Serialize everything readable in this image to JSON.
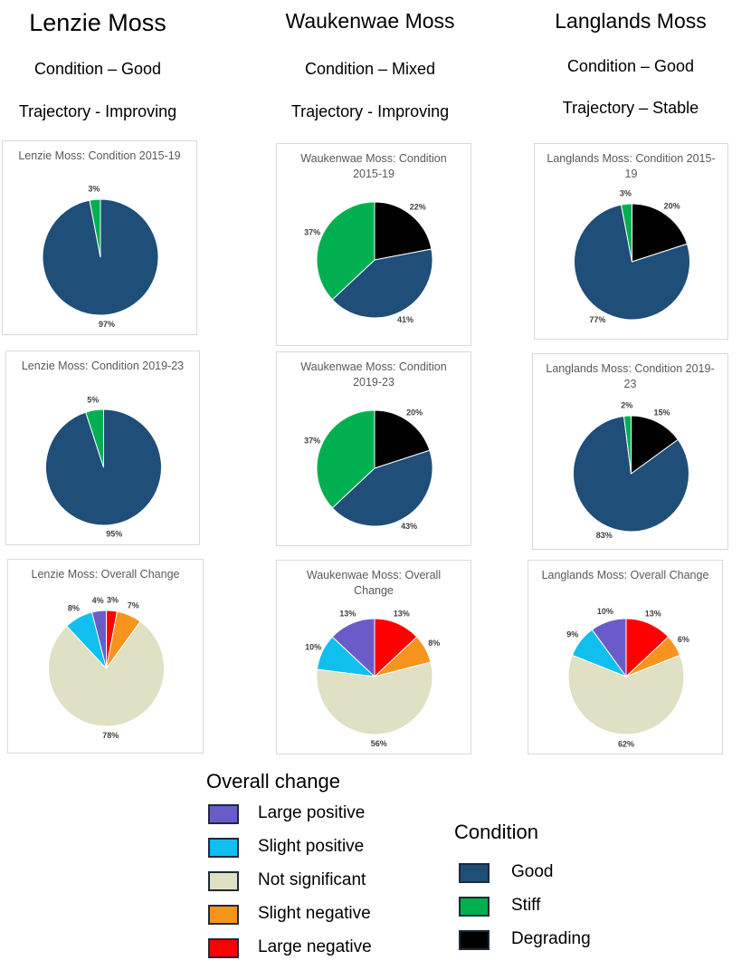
{
  "columns": [
    {
      "title": "Lenzie Moss",
      "condition": "Condition – Good",
      "trajectory": "Trajectory - Improving"
    },
    {
      "title": "Waukenwae Moss",
      "condition": "Condition – Mixed",
      "trajectory": "Trajectory - Improving"
    },
    {
      "title": "Langlands Moss",
      "condition": "Condition – Good",
      "trajectory": "Trajectory – Stable"
    }
  ],
  "chart_data": [
    {
      "type": "pie",
      "title": "Lenzie Moss: Condition 2015-19",
      "values": [
        97,
        3
      ],
      "value_labels": [
        "97%",
        "3%"
      ],
      "colors": [
        "#1f4e79",
        "#00b050"
      ]
    },
    {
      "type": "pie",
      "title": "Waukenwae Moss: Condition 2015-19",
      "values": [
        22,
        41,
        37
      ],
      "value_labels": [
        "22%",
        "41%",
        "37%"
      ],
      "colors": [
        "#000000",
        "#1f4e79",
        "#00b050"
      ]
    },
    {
      "type": "pie",
      "title": "Langlands Moss: Condition 2015-19",
      "values": [
        20,
        77,
        3
      ],
      "value_labels": [
        "20%",
        "77%",
        "3%"
      ],
      "colors": [
        "#000000",
        "#1f4e79",
        "#00b050"
      ]
    },
    {
      "type": "pie",
      "title": "Lenzie Moss: Condition 2019-23",
      "values": [
        95,
        5
      ],
      "value_labels": [
        "95%",
        "5%"
      ],
      "colors": [
        "#1f4e79",
        "#00b050"
      ]
    },
    {
      "type": "pie",
      "title": "Waukenwae Moss: Condition 2019-23",
      "values": [
        20,
        43,
        37
      ],
      "value_labels": [
        "20%",
        "43%",
        "37%"
      ],
      "colors": [
        "#000000",
        "#1f4e79",
        "#00b050"
      ]
    },
    {
      "type": "pie",
      "title": "Langlands Moss: Condition 2019-23",
      "values": [
        15,
        83,
        2
      ],
      "value_labels": [
        "15%",
        "83%",
        "2%"
      ],
      "colors": [
        "#000000",
        "#1f4e79",
        "#00b050"
      ]
    },
    {
      "type": "pie",
      "title": "Lenzie Moss: Overall Change",
      "values": [
        3,
        7,
        78,
        8,
        4
      ],
      "value_labels": [
        "3%",
        "7%",
        "78%",
        "8%",
        "4%"
      ],
      "colors": [
        "#ff0000",
        "#f7941d",
        "#dfe0c4",
        "#10bfee",
        "#6a5cc8"
      ]
    },
    {
      "type": "pie",
      "title": "Waukenwae Moss: Overall Change",
      "values": [
        13,
        8,
        56,
        10,
        13
      ],
      "value_labels": [
        "13%",
        "8%",
        "56%",
        "10%",
        "13%"
      ],
      "colors": [
        "#ff0000",
        "#f7941d",
        "#dfe0c4",
        "#10bfee",
        "#6a5cc8"
      ]
    },
    {
      "type": "pie",
      "title": "Langlands Moss: Overall Change",
      "values": [
        13,
        6,
        62,
        9,
        10
      ],
      "value_labels": [
        "13%",
        "6%",
        "62%",
        "9%",
        "10%"
      ],
      "colors": [
        "#ff0000",
        "#f7941d",
        "#dfe0c4",
        "#10bfee",
        "#6a5cc8"
      ]
    }
  ],
  "legends": [
    {
      "title": "Overall change",
      "items": [
        {
          "name": "Large positive",
          "color": "#6a5cc8"
        },
        {
          "name": "Slight positive",
          "color": "#10bfee"
        },
        {
          "name": "Not significant",
          "color": "#dfe0c4"
        },
        {
          "name": "Slight negative",
          "color": "#f7941d"
        },
        {
          "name": "Large negative",
          "color": "#ff0000"
        }
      ]
    },
    {
      "title": "Condition",
      "items": [
        {
          "name": "Good",
          "color": "#1f4e79"
        },
        {
          "name": "Stiff",
          "color": "#00b050"
        },
        {
          "name": "Degrading",
          "color": "#000000"
        }
      ]
    }
  ]
}
